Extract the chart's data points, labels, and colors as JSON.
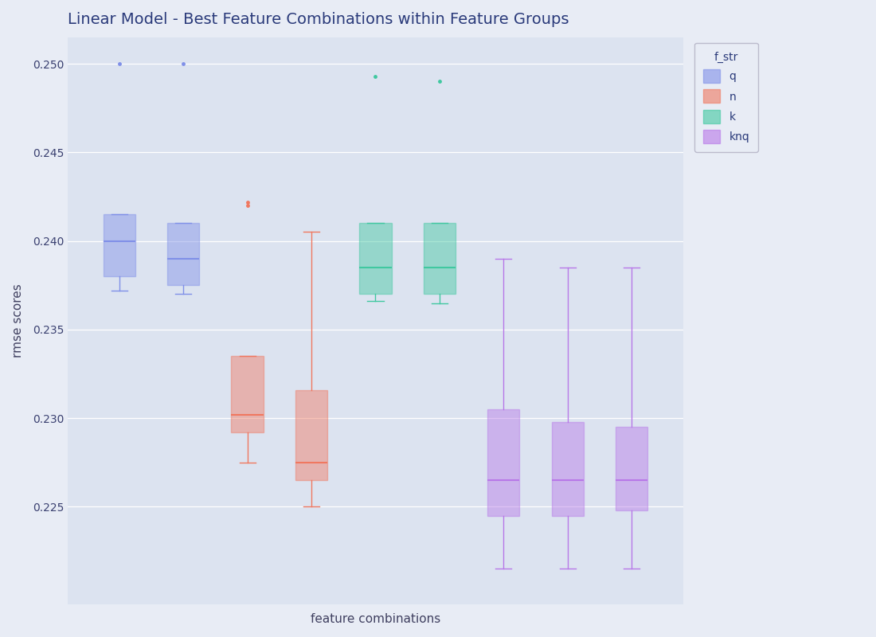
{
  "title": "Linear Model - Best Feature Combinations within Feature Groups",
  "xlabel": "feature combinations",
  "ylabel": "rmse scores",
  "fig_bg_color": "#e8ecf5",
  "plot_bg_color": "#dce3f0",
  "legend_title": "f_str",
  "legend_labels": [
    "q",
    "n",
    "k",
    "knq"
  ],
  "legend_colors": [
    "#8090e8",
    "#f07860",
    "#40c8a0",
    "#b878e8"
  ],
  "groups": [
    {
      "label": "q",
      "color_idx": 0,
      "positions": [
        1,
        2
      ],
      "boxes": [
        {
          "whislo": 0.2372,
          "q1": 0.238,
          "med": 0.24,
          "q3": 0.2415,
          "whishi": 0.2415,
          "fliers": [
            0.25
          ]
        },
        {
          "whislo": 0.237,
          "q1": 0.2375,
          "med": 0.239,
          "q3": 0.241,
          "whishi": 0.241,
          "fliers": [
            0.25
          ]
        }
      ]
    },
    {
      "label": "n",
      "color_idx": 1,
      "positions": [
        3,
        4
      ],
      "boxes": [
        {
          "whislo": 0.2275,
          "q1": 0.2292,
          "med": 0.2302,
          "q3": 0.2335,
          "whishi": 0.2335,
          "fliers": [
            0.242,
            0.2422
          ]
        },
        {
          "whislo": 0.225,
          "q1": 0.2265,
          "med": 0.2275,
          "q3": 0.2316,
          "whishi": 0.2405,
          "fliers": []
        }
      ]
    },
    {
      "label": "k",
      "color_idx": 2,
      "positions": [
        5,
        6
      ],
      "boxes": [
        {
          "whislo": 0.2366,
          "q1": 0.237,
          "med": 0.2385,
          "q3": 0.241,
          "whishi": 0.241,
          "fliers": [
            0.2493
          ]
        },
        {
          "whislo": 0.2365,
          "q1": 0.237,
          "med": 0.2385,
          "q3": 0.241,
          "whishi": 0.241,
          "fliers": [
            0.249
          ]
        }
      ]
    },
    {
      "label": "knq",
      "color_idx": 3,
      "positions": [
        7,
        8,
        9
      ],
      "boxes": [
        {
          "whislo": 0.2215,
          "q1": 0.2245,
          "med": 0.2265,
          "q3": 0.2305,
          "whishi": 0.239,
          "fliers": []
        },
        {
          "whislo": 0.2215,
          "q1": 0.2245,
          "med": 0.2265,
          "q3": 0.2298,
          "whishi": 0.2385,
          "fliers": []
        },
        {
          "whislo": 0.2215,
          "q1": 0.2248,
          "med": 0.2265,
          "q3": 0.2295,
          "whishi": 0.2385,
          "fliers": []
        }
      ]
    }
  ],
  "ylim": [
    0.2195,
    0.2515
  ],
  "yticks": [
    0.225,
    0.23,
    0.235,
    0.24,
    0.245,
    0.25
  ],
  "box_width": 0.5,
  "title_fontsize": 14,
  "axis_label_fontsize": 11,
  "tick_fontsize": 10
}
